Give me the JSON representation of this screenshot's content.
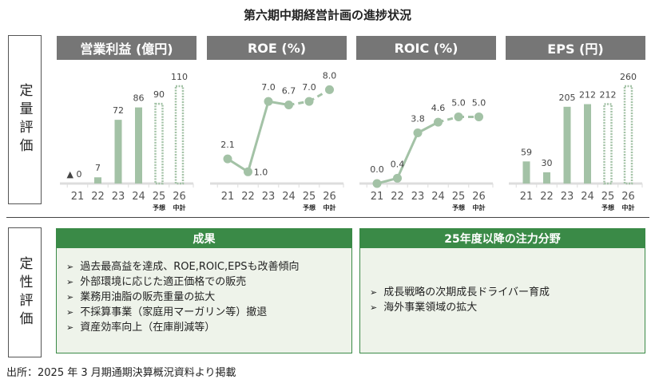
{
  "title": "第六期中期経営計画の進捗状況",
  "side_quant": "定量評価",
  "side_qual": "定性評価",
  "chart_data": [
    {
      "type": "bar",
      "title": "営業利益 (億円)",
      "categories": [
        "21",
        "22",
        "23",
        "24",
        "25",
        "26"
      ],
      "sublabels": [
        "",
        "",
        "",
        "",
        "予想",
        "中計"
      ],
      "values": [
        0,
        7,
        72,
        86,
        90,
        110
      ],
      "labels": [
        "▲ 0",
        "7",
        "72",
        "86",
        "90",
        "110"
      ],
      "forecast_from": 4,
      "ylim": [
        0,
        110
      ]
    },
    {
      "type": "line",
      "title": "ROE (%)",
      "categories": [
        "21",
        "22",
        "23",
        "24",
        "25",
        "26"
      ],
      "sublabels": [
        "",
        "",
        "",
        "",
        "予想",
        "中計"
      ],
      "values": [
        2.1,
        1.0,
        7.0,
        6.7,
        7.0,
        8.0
      ],
      "labels": [
        "2.1",
        "1.0",
        "7.0",
        "6.7",
        "7.0",
        "8.0"
      ],
      "forecast_from": 4,
      "ylim": [
        0,
        8.3
      ]
    },
    {
      "type": "line",
      "title": "ROIC (%)",
      "categories": [
        "21",
        "22",
        "23",
        "24",
        "25",
        "26"
      ],
      "sublabels": [
        "",
        "",
        "",
        "",
        "予想",
        "中計"
      ],
      "values": [
        0.0,
        0.4,
        3.8,
        4.6,
        5.0,
        5.0
      ],
      "labels": [
        "0.0",
        "0.4",
        "3.8",
        "4.6",
        "5.0",
        "5.0"
      ],
      "forecast_from": 4,
      "ylim": [
        0,
        7.3
      ]
    },
    {
      "type": "bar",
      "title": "EPS (円)",
      "categories": [
        "21",
        "22",
        "23",
        "24",
        "25",
        "26"
      ],
      "sublabels": [
        "",
        "",
        "",
        "",
        "予想",
        "中計"
      ],
      "values": [
        59,
        30,
        205,
        212,
        212,
        260
      ],
      "labels": [
        "59",
        "30",
        "205",
        "212",
        "212",
        "260"
      ],
      "forecast_from": 4,
      "ylim": [
        0,
        260
      ]
    }
  ],
  "results": {
    "title": "成果",
    "items": [
      "過去最高益を達成、ROE,ROIC,EPSも改善傾向",
      "外部環境に応じた適正価格での販売",
      "業務用油脂の販売重量の拡大",
      "不採算事業（家庭用マーガリン等）撤退",
      "資産効率向上（在庫削減等）"
    ]
  },
  "focus": {
    "title": "25年度以降の注力分野",
    "items": [
      "成長戦略の次期成長ドライバー育成",
      "海外事業領域の拡大"
    ]
  },
  "footer": "出所：2025 年 3 月期通期決算概況資料より掲載",
  "colors": {
    "bar": "#a3c2a6",
    "header": "#767676",
    "green": "#3a8a47"
  }
}
